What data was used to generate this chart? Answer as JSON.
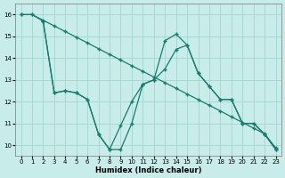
{
  "xlabel": "Humidex (Indice chaleur)",
  "bg_color": "#c8ece9",
  "grid_color": "#a8d8d4",
  "line_color": "#1a7a6e",
  "xlim": [
    -0.5,
    23.5
  ],
  "ylim": [
    9.5,
    16.5
  ],
  "yticks": [
    10,
    11,
    12,
    13,
    14,
    15,
    16
  ],
  "xticks": [
    0,
    1,
    2,
    3,
    4,
    5,
    6,
    7,
    8,
    9,
    10,
    11,
    12,
    13,
    14,
    15,
    16,
    17,
    18,
    19,
    20,
    21,
    22,
    23
  ],
  "line1_x": [
    0,
    1,
    2,
    3,
    4,
    5,
    6,
    7,
    8,
    9,
    10,
    11,
    12,
    13,
    14,
    15,
    16,
    17,
    18,
    19,
    20,
    21,
    22,
    23
  ],
  "line1_y": [
    16.0,
    16.0,
    15.74,
    15.48,
    15.22,
    14.96,
    14.7,
    14.43,
    14.17,
    13.91,
    13.65,
    13.39,
    13.13,
    12.87,
    12.61,
    12.35,
    12.09,
    11.83,
    11.57,
    11.3,
    11.04,
    10.78,
    10.52,
    9.87
  ],
  "line2_x": [
    0,
    1,
    2,
    3,
    4,
    5,
    6,
    7,
    8,
    9,
    10,
    11,
    12,
    13,
    14,
    15,
    16,
    17,
    18,
    19,
    20,
    21,
    22,
    23
  ],
  "line2_y": [
    16.0,
    16.0,
    15.7,
    12.4,
    12.5,
    12.4,
    12.1,
    10.5,
    9.8,
    9.8,
    11.0,
    12.8,
    13.0,
    14.8,
    15.1,
    14.6,
    13.3,
    12.7,
    12.1,
    12.1,
    11.0,
    11.0,
    10.5,
    9.8
  ],
  "line3_x": [
    2,
    3,
    4,
    5,
    6,
    7,
    8,
    9,
    10,
    11,
    12,
    13,
    14,
    15,
    16,
    17,
    18,
    19,
    20,
    21,
    22,
    23
  ],
  "line3_y": [
    15.7,
    12.4,
    12.5,
    12.4,
    12.1,
    10.5,
    9.8,
    10.9,
    12.0,
    12.8,
    13.0,
    13.5,
    14.4,
    14.6,
    13.3,
    12.7,
    12.1,
    12.1,
    11.0,
    11.0,
    10.5,
    9.8
  ]
}
